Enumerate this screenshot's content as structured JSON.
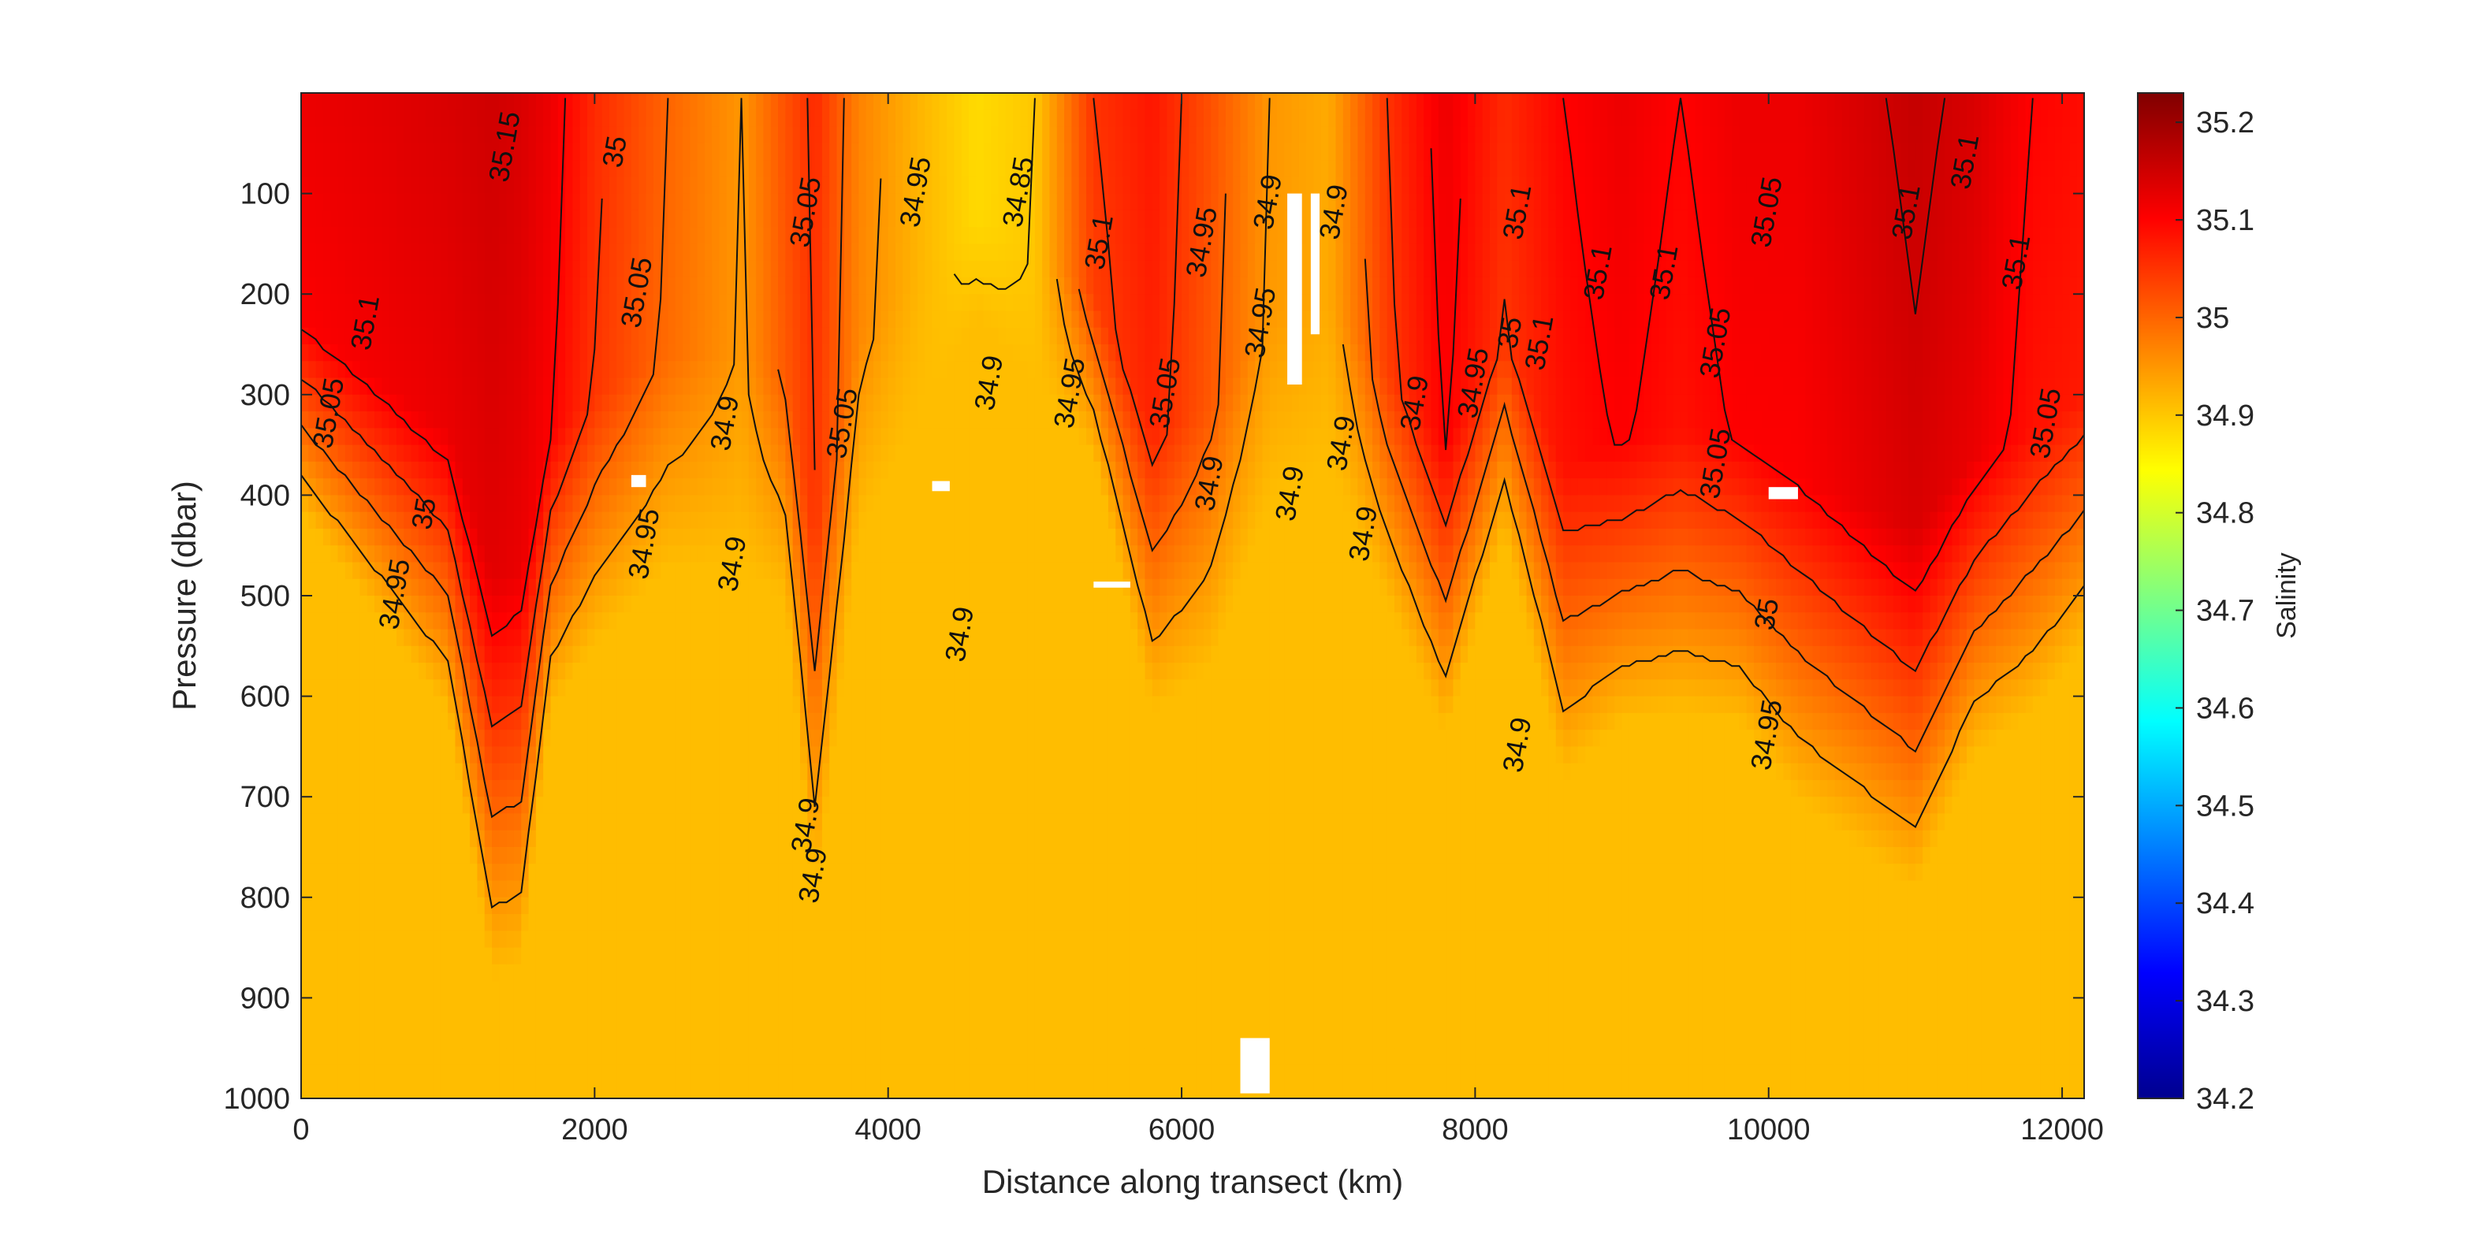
{
  "chart_data": {
    "type": "heatmap",
    "title": "",
    "xlabel": "Distance along transect (km)",
    "ylabel": "Pressure (dbar)",
    "colorbar_label": "Salinity",
    "xlim": [
      0,
      12150
    ],
    "ylim": [
      0,
      1000
    ],
    "y_reversed": true,
    "clim": [
      34.2,
      35.23
    ],
    "x_ticks": [
      0,
      2000,
      4000,
      6000,
      8000,
      10000,
      12000
    ],
    "y_ticks": [
      100,
      200,
      300,
      400,
      500,
      600,
      700,
      800,
      900,
      1000
    ],
    "colorbar_ticks": [
      34.2,
      34.3,
      34.4,
      34.5,
      34.6,
      34.7,
      34.8,
      34.9,
      35,
      35.1,
      35.2
    ],
    "colormap": "jet",
    "grid": false,
    "contour_levels": [
      34.85,
      34.9,
      34.95,
      35,
      35.05,
      35.1,
      35.15
    ],
    "depth_profile": {
      "x": [
        0,
        500,
        1000,
        1300,
        1500,
        1700,
        2000,
        2500,
        3000,
        3300,
        3500,
        3800,
        4200,
        4600,
        5000,
        5400,
        5800,
        6200,
        6600,
        7000,
        7400,
        7800,
        8200,
        8600,
        9000,
        9400,
        9800,
        10200,
        10600,
        11000,
        11400,
        11800,
        12150
      ],
      "surface_salinity": [
        35.12,
        35.13,
        35.14,
        35.15,
        35.14,
        35.12,
        35.06,
        35.0,
        34.95,
        35.02,
        35.06,
        34.97,
        34.92,
        34.88,
        34.9,
        35.05,
        35.08,
        35.02,
        34.95,
        34.93,
        35.05,
        35.12,
        35.06,
        35.1,
        35.12,
        35.1,
        35.12,
        35.12,
        35.14,
        35.16,
        35.14,
        35.1,
        35.09
      ],
      "mixed_depth": [
        380,
        470,
        560,
        800,
        790,
        560,
        500,
        430,
        430,
        460,
        740,
        400,
        300,
        200,
        260,
        330,
        560,
        520,
        370,
        340,
        460,
        580,
        400,
        620,
        570,
        560,
        570,
        640,
        680,
        720,
        600,
        560,
        500
      ],
      "deep_salinity": 34.91
    },
    "missing_data_patches": [
      {
        "x": [
          6400,
          6600
        ],
        "p": [
          940,
          995
        ]
      },
      {
        "x": [
          6720,
          6820
        ],
        "p": [
          100,
          290
        ]
      },
      {
        "x": [
          6880,
          6940
        ],
        "p": [
          100,
          240
        ]
      },
      {
        "x": [
          10000,
          10200
        ],
        "p": [
          392,
          404
        ]
      },
      {
        "x": [
          5400,
          5650
        ],
        "p": [
          486,
          492
        ]
      },
      {
        "x": [
          2250,
          2350
        ],
        "p": [
          380,
          392
        ]
      },
      {
        "x": [
          4300,
          4420
        ],
        "p": [
          386,
          396
        ]
      }
    ],
    "contour_labels": [
      {
        "text": "35.15",
        "x": 1450,
        "p": 55
      },
      {
        "text": "35.1",
        "x": 500,
        "p": 230
      },
      {
        "text": "35.05",
        "x": 250,
        "p": 320
      },
      {
        "text": "35",
        "x": 900,
        "p": 420
      },
      {
        "text": "34.95",
        "x": 700,
        "p": 500
      },
      {
        "text": "35",
        "x": 2200,
        "p": 60
      },
      {
        "text": "35.05",
        "x": 2350,
        "p": 200
      },
      {
        "text": "34.95",
        "x": 2400,
        "p": 450
      },
      {
        "text": "34.9",
        "x": 2950,
        "p": 330
      },
      {
        "text": "34.9",
        "x": 3000,
        "p": 470
      },
      {
        "text": "35.05",
        "x": 3500,
        "p": 120
      },
      {
        "text": "35.05",
        "x": 3750,
        "p": 330
      },
      {
        "text": "34.95",
        "x": 4250,
        "p": 100
      },
      {
        "text": "34.9",
        "x": 4750,
        "p": 290
      },
      {
        "text": "34.9",
        "x": 4550,
        "p": 540
      },
      {
        "text": "34.85",
        "x": 4950,
        "p": 100
      },
      {
        "text": "35.1",
        "x": 5500,
        "p": 150
      },
      {
        "text": "34.95",
        "x": 5300,
        "p": 300
      },
      {
        "text": "35.05",
        "x": 5950,
        "p": 300
      },
      {
        "text": "34.95",
        "x": 6200,
        "p": 150
      },
      {
        "text": "34.95",
        "x": 6600,
        "p": 230
      },
      {
        "text": "34.9",
        "x": 6250,
        "p": 390
      },
      {
        "text": "34.9",
        "x": 6650,
        "p": 110
      },
      {
        "text": "34.9",
        "x": 7100,
        "p": 120
      },
      {
        "text": "34.9",
        "x": 7150,
        "p": 350
      },
      {
        "text": "34.9",
        "x": 6800,
        "p": 400
      },
      {
        "text": "34.9",
        "x": 7300,
        "p": 440
      },
      {
        "text": "34.9",
        "x": 7650,
        "p": 310
      },
      {
        "text": "34.95",
        "x": 8050,
        "p": 290
      },
      {
        "text": "35",
        "x": 8300,
        "p": 240
      },
      {
        "text": "35.1",
        "x": 8500,
        "p": 250
      },
      {
        "text": "35.1",
        "x": 8350,
        "p": 120
      },
      {
        "text": "35.1",
        "x": 8900,
        "p": 180
      },
      {
        "text": "34.9",
        "x": 8350,
        "p": 650
      },
      {
        "text": "35.1",
        "x": 9350,
        "p": 180
      },
      {
        "text": "35.05",
        "x": 9700,
        "p": 250
      },
      {
        "text": "35.05",
        "x": 9700,
        "p": 370
      },
      {
        "text": "35.05",
        "x": 10050,
        "p": 120
      },
      {
        "text": "35",
        "x": 10050,
        "p": 520
      },
      {
        "text": "34.95",
        "x": 10050,
        "p": 640
      },
      {
        "text": "35.1",
        "x": 11000,
        "p": 120
      },
      {
        "text": "35.1",
        "x": 11400,
        "p": 70
      },
      {
        "text": "35.1",
        "x": 11750,
        "p": 170
      },
      {
        "text": "35.05",
        "x": 11950,
        "p": 330
      },
      {
        "text": "34.9",
        "x": 3500,
        "p": 730
      },
      {
        "text": "34.9",
        "x": 3550,
        "p": 780
      }
    ]
  }
}
